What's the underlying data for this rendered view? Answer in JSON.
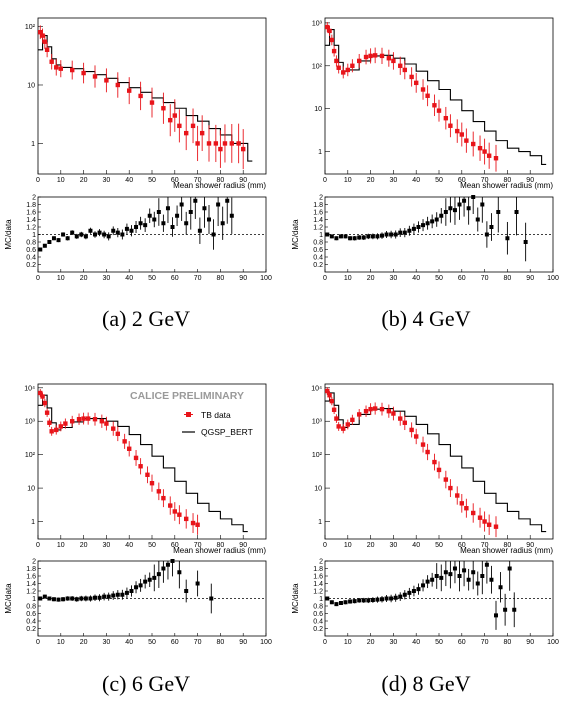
{
  "watermark": "CALICE PRELIMINARY",
  "legend": {
    "data_label": "TB data",
    "mc_label": "QGSP_BERT"
  },
  "colors": {
    "data": "#e8141a",
    "mc": "#000000",
    "ratio": "#000000"
  },
  "chart_data": [
    {
      "type": "line",
      "caption": "(a) 2 GeV",
      "xlabel": "Mean shower radius (mm)",
      "ylabel_ratio": "MC/data",
      "log_y": true,
      "xlim": [
        0,
        100
      ],
      "ylim": [
        0.3,
        140
      ],
      "ratio_ylim": [
        0,
        2
      ],
      "x_ticks": [
        0,
        10,
        20,
        30,
        40,
        50,
        60,
        70,
        80,
        90
      ],
      "ratio_x_ticks": [
        0,
        10,
        20,
        30,
        40,
        50,
        60,
        70,
        80,
        90,
        100
      ],
      "y_ticks": [
        {
          "v": 1,
          "label": "1"
        },
        {
          "v": 10,
          "label": "10"
        },
        {
          "v": 100,
          "label": "10²"
        }
      ],
      "ratio_y_ticks": [
        0.2,
        0.4,
        0.6,
        0.8,
        1,
        1.2,
        1.4,
        1.6,
        1.8,
        2
      ],
      "series": [
        {
          "name": "TB data",
          "x": [
            1,
            2,
            3,
            4,
            6,
            8,
            10,
            15,
            20,
            25,
            30,
            35,
            40,
            45,
            50,
            55,
            58,
            60,
            62,
            65,
            68,
            70,
            72,
            75,
            78,
            80,
            82,
            85,
            88,
            90
          ],
          "y": [
            80,
            70,
            55,
            40,
            25,
            20,
            19,
            18,
            16,
            14,
            12,
            10,
            8,
            6.5,
            5,
            4,
            2.5,
            3,
            2,
            1.5,
            2,
            1,
            1.5,
            1,
            1,
            0.8,
            1,
            1,
            1,
            0.8
          ]
        },
        {
          "name": "QGSP_BERT",
          "x": [
            0,
            2,
            4,
            6,
            8,
            10,
            15,
            20,
            25,
            30,
            35,
            40,
            45,
            50,
            55,
            60,
            65,
            70,
            75,
            80,
            85,
            90,
            92
          ],
          "y": [
            40,
            70,
            45,
            28,
            22,
            20,
            19,
            17,
            15,
            13,
            11,
            9,
            7.5,
            6,
            5,
            4,
            3,
            2.4,
            1.8,
            1.4,
            1,
            1,
            0.5
          ]
        }
      ],
      "ratio": {
        "x": [
          1,
          3,
          5,
          7,
          9,
          11,
          13,
          15,
          17,
          19,
          21,
          23,
          25,
          27,
          29,
          31,
          33,
          35,
          37,
          39,
          41,
          43,
          45,
          47,
          49,
          51,
          53,
          55,
          57,
          59,
          61,
          63,
          65,
          67,
          69,
          71,
          73,
          75,
          77,
          79,
          81,
          83,
          85
        ],
        "y": [
          0.6,
          0.7,
          0.8,
          0.9,
          0.85,
          1.0,
          0.9,
          1.05,
          0.95,
          1.0,
          0.95,
          1.1,
          1.0,
          1.05,
          1.0,
          0.95,
          1.1,
          1.05,
          1.0,
          1.15,
          1.1,
          1.2,
          1.3,
          1.25,
          1.5,
          1.4,
          1.6,
          1.3,
          1.7,
          1.2,
          1.5,
          1.8,
          1.3,
          1.6,
          1.9,
          1.1,
          1.7,
          1.4,
          1.0,
          1.8,
          1.3,
          1.9,
          1.5
        ]
      }
    },
    {
      "type": "line",
      "caption": "(b) 4 GeV",
      "xlabel": "Mean shower radius (mm)",
      "ylabel_ratio": "MC/data",
      "log_y": true,
      "xlim": [
        0,
        100
      ],
      "ylim": [
        0.3,
        1300
      ],
      "ratio_ylim": [
        0,
        2
      ],
      "x_ticks": [
        0,
        10,
        20,
        30,
        40,
        50,
        60,
        70,
        80,
        90
      ],
      "ratio_x_ticks": [
        0,
        10,
        20,
        30,
        40,
        50,
        60,
        70,
        80,
        90,
        100
      ],
      "y_ticks": [
        {
          "v": 1,
          "label": "1"
        },
        {
          "v": 10,
          "label": "10"
        },
        {
          "v": 100,
          "label": "10²"
        },
        {
          "v": 1000,
          "label": "10³"
        }
      ],
      "ratio_y_ticks": [
        0.2,
        0.4,
        0.6,
        0.8,
        1,
        1.2,
        1.4,
        1.6,
        1.8,
        2
      ],
      "series": [
        {
          "name": "TB data",
          "x": [
            1,
            2,
            3,
            4,
            5,
            6,
            8,
            10,
            12,
            15,
            18,
            20,
            22,
            25,
            28,
            30,
            33,
            35,
            38,
            40,
            43,
            45,
            48,
            50,
            53,
            55,
            58,
            60,
            62,
            65,
            68,
            70,
            72,
            75
          ],
          "y": [
            800,
            650,
            400,
            220,
            130,
            90,
            70,
            80,
            100,
            130,
            160,
            170,
            175,
            170,
            150,
            130,
            100,
            80,
            55,
            40,
            28,
            20,
            12,
            9,
            6,
            4,
            3,
            2.5,
            1.8,
            1.5,
            1.2,
            1,
            0.8,
            0.7
          ]
        },
        {
          "name": "QGSP_BERT",
          "x": [
            0,
            2,
            4,
            6,
            8,
            10,
            15,
            20,
            25,
            30,
            35,
            40,
            45,
            50,
            55,
            60,
            65,
            70,
            75,
            80,
            85,
            90,
            95
          ],
          "y": [
            300,
            700,
            300,
            120,
            75,
            80,
            130,
            170,
            175,
            150,
            110,
            75,
            45,
            28,
            16,
            9,
            5,
            3,
            1.8,
            1.2,
            1,
            0.8,
            0.5
          ]
        }
      ],
      "ratio": {
        "x": [
          1,
          3,
          5,
          7,
          9,
          11,
          13,
          15,
          17,
          19,
          21,
          23,
          25,
          27,
          29,
          31,
          33,
          35,
          37,
          39,
          41,
          43,
          45,
          47,
          49,
          51,
          53,
          55,
          57,
          59,
          61,
          63,
          65,
          67,
          69,
          71,
          73,
          76,
          80,
          84,
          88
        ],
        "y": [
          1.0,
          0.95,
          0.9,
          0.95,
          0.95,
          0.9,
          0.9,
          0.92,
          0.92,
          0.95,
          0.95,
          0.95,
          0.97,
          1.0,
          1.0,
          1.0,
          1.05,
          1.05,
          1.1,
          1.15,
          1.2,
          1.25,
          1.3,
          1.35,
          1.4,
          1.5,
          1.6,
          1.7,
          1.65,
          1.8,
          1.9,
          1.7,
          2.0,
          1.4,
          1.8,
          1.0,
          1.2,
          1.6,
          0.9,
          1.6,
          0.8
        ]
      }
    },
    {
      "type": "line",
      "caption": "(c) 6 GeV",
      "xlabel": "Mean shower radius (mm)",
      "ylabel_ratio": "MC/data",
      "log_y": true,
      "xlim": [
        0,
        100
      ],
      "ylim": [
        0.3,
        13000
      ],
      "ratio_ylim": [
        0,
        2
      ],
      "x_ticks": [
        0,
        10,
        20,
        30,
        40,
        50,
        60,
        70,
        80,
        90
      ],
      "ratio_x_ticks": [
        0,
        10,
        20,
        30,
        40,
        50,
        60,
        70,
        80,
        90,
        100
      ],
      "y_ticks": [
        {
          "v": 1,
          "label": "1"
        },
        {
          "v": 10,
          "label": "10"
        },
        {
          "v": 100,
          "label": "10²"
        },
        {
          "v": 1000,
          "label": "10³"
        },
        {
          "v": 10000,
          "label": "10⁴"
        }
      ],
      "ratio_y_ticks": [
        0.2,
        0.4,
        0.6,
        0.8,
        1,
        1.2,
        1.4,
        1.6,
        1.8,
        2
      ],
      "series": [
        {
          "name": "TB data",
          "x": [
            1,
            2,
            3,
            4,
            5,
            6,
            8,
            10,
            12,
            15,
            18,
            20,
            22,
            25,
            28,
            30,
            33,
            35,
            38,
            40,
            43,
            45,
            48,
            50,
            53,
            55,
            58,
            60,
            62,
            65,
            68,
            70
          ],
          "y": [
            7000,
            5500,
            3500,
            1800,
            900,
            500,
            550,
            700,
            850,
            1000,
            1150,
            1200,
            1200,
            1150,
            1000,
            850,
            600,
            420,
            250,
            150,
            80,
            45,
            25,
            14,
            8,
            5,
            3,
            2,
            1.6,
            1.2,
            0.9,
            0.8
          ]
        },
        {
          "name": "QGSP_BERT",
          "x": [
            0,
            2,
            4,
            6,
            8,
            10,
            15,
            20,
            25,
            30,
            35,
            40,
            45,
            50,
            55,
            60,
            65,
            70,
            75,
            80,
            85,
            90
          ],
          "y": [
            3000,
            6000,
            2500,
            900,
            550,
            650,
            950,
            1200,
            1200,
            1000,
            700,
            400,
            200,
            90,
            40,
            16,
            7,
            3.5,
            2,
            1.2,
            0.8,
            0.5
          ]
        }
      ],
      "ratio": {
        "x": [
          1,
          3,
          5,
          7,
          9,
          11,
          13,
          15,
          17,
          19,
          21,
          23,
          25,
          27,
          29,
          31,
          33,
          35,
          37,
          39,
          41,
          43,
          45,
          47,
          49,
          51,
          53,
          55,
          57,
          59,
          62,
          65,
          70,
          76
        ],
        "y": [
          1.0,
          1.05,
          1.0,
          0.98,
          0.97,
          0.98,
          1.0,
          1.0,
          0.98,
          1.0,
          1.0,
          1.0,
          1.02,
          1.02,
          1.05,
          1.05,
          1.08,
          1.1,
          1.1,
          1.15,
          1.2,
          1.3,
          1.35,
          1.45,
          1.5,
          1.55,
          1.65,
          1.8,
          1.9,
          2.0,
          1.7,
          1.2,
          1.4,
          1.0
        ]
      }
    },
    {
      "type": "line",
      "caption": "(d) 8 GeV",
      "xlabel": "Mean shower radius (mm)",
      "ylabel_ratio": "MC/data",
      "log_y": true,
      "xlim": [
        0,
        100
      ],
      "ylim": [
        0.3,
        13000
      ],
      "ratio_ylim": [
        0,
        2
      ],
      "x_ticks": [
        0,
        10,
        20,
        30,
        40,
        50,
        60,
        70,
        80,
        90
      ],
      "ratio_x_ticks": [
        0,
        10,
        20,
        30,
        40,
        50,
        60,
        70,
        80,
        90,
        100
      ],
      "y_ticks": [
        {
          "v": 1,
          "label": "1"
        },
        {
          "v": 10,
          "label": "10"
        },
        {
          "v": 100,
          "label": "10²"
        },
        {
          "v": 1000,
          "label": "10³"
        },
        {
          "v": 10000,
          "label": "10⁴"
        }
      ],
      "ratio_y_ticks": [
        0.2,
        0.4,
        0.6,
        0.8,
        1,
        1.2,
        1.4,
        1.6,
        1.8,
        2
      ],
      "series": [
        {
          "name": "TB data",
          "x": [
            1,
            2,
            3,
            4,
            5,
            6,
            8,
            10,
            12,
            15,
            18,
            20,
            22,
            25,
            28,
            30,
            33,
            35,
            38,
            40,
            43,
            45,
            48,
            50,
            53,
            55,
            58,
            60,
            62,
            65,
            68,
            70,
            72,
            75
          ],
          "y": [
            8000,
            6000,
            4000,
            2200,
            1200,
            700,
            600,
            800,
            1100,
            1600,
            2000,
            2300,
            2400,
            2300,
            2000,
            1700,
            1200,
            900,
            550,
            350,
            200,
            120,
            60,
            35,
            18,
            10,
            6,
            3.5,
            2.5,
            1.8,
            1.3,
            1,
            0.8,
            0.7
          ]
        },
        {
          "name": "QGSP_BERT",
          "x": [
            0,
            2,
            4,
            6,
            8,
            10,
            15,
            20,
            25,
            30,
            35,
            40,
            45,
            50,
            55,
            60,
            65,
            70,
            75,
            80,
            85,
            90,
            95
          ],
          "y": [
            4000,
            7000,
            3000,
            1100,
            650,
            800,
            1600,
            2300,
            2400,
            2000,
            1400,
            800,
            420,
            200,
            90,
            40,
            16,
            7,
            3.5,
            2,
            1.2,
            0.8,
            0.5
          ]
        }
      ],
      "ratio": {
        "x": [
          1,
          3,
          5,
          7,
          9,
          11,
          13,
          15,
          17,
          19,
          21,
          23,
          25,
          27,
          29,
          31,
          33,
          35,
          37,
          39,
          41,
          43,
          45,
          47,
          49,
          51,
          53,
          55,
          57,
          59,
          61,
          63,
          65,
          67,
          69,
          71,
          73,
          75,
          77,
          79,
          81,
          83
        ],
        "y": [
          1.0,
          0.9,
          0.85,
          0.88,
          0.9,
          0.92,
          0.93,
          0.95,
          0.95,
          0.95,
          0.96,
          0.97,
          0.98,
          1.0,
          1.0,
          1.02,
          1.05,
          1.1,
          1.15,
          1.2,
          1.25,
          1.35,
          1.45,
          1.5,
          1.6,
          1.55,
          1.7,
          1.65,
          1.8,
          1.6,
          1.75,
          1.5,
          1.7,
          1.4,
          1.6,
          1.9,
          1.5,
          0.55,
          1.3,
          0.7,
          1.8,
          0.7
        ]
      }
    }
  ]
}
